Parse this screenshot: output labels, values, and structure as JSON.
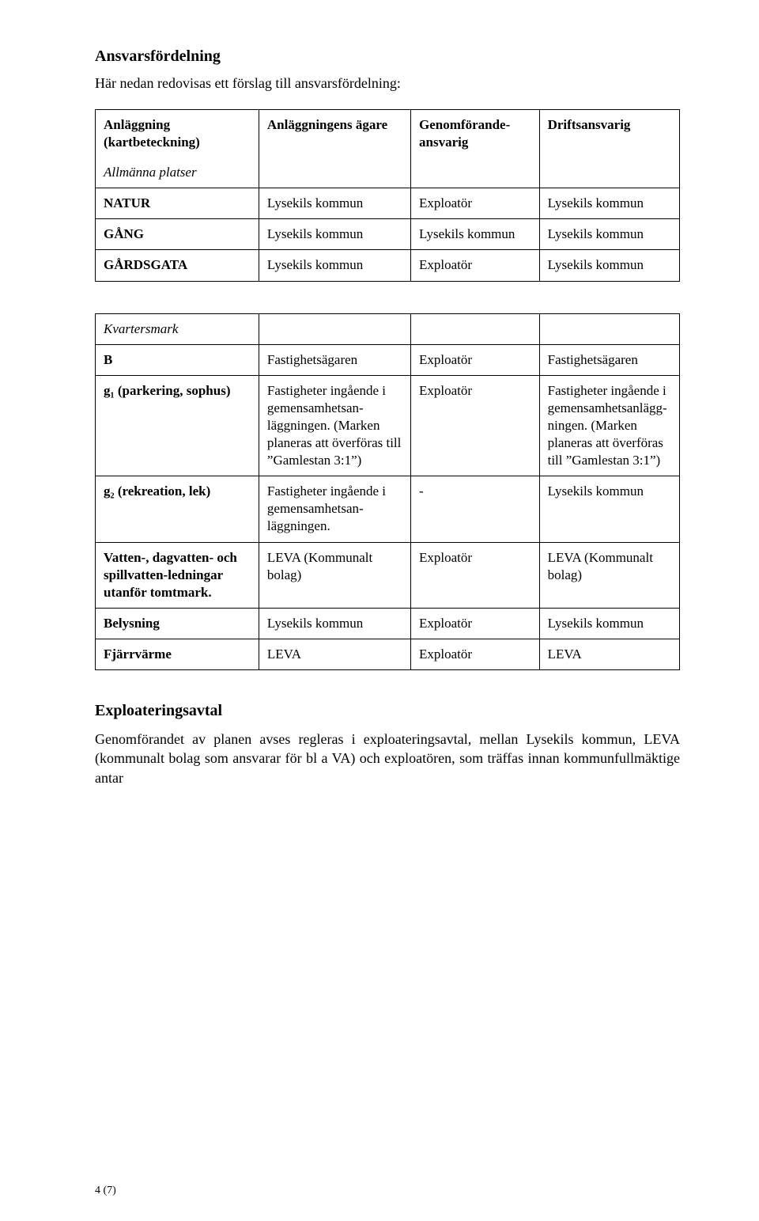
{
  "section1": {
    "heading": "Ansvarsfördelning",
    "intro": "Här nedan redovisas ett förslag till ansvarsfördelning:"
  },
  "table1": {
    "header": {
      "c1": "Anläggning (kartbeteckning)",
      "c2": "Anläggningens ägare",
      "c3": "Genomförande-ansvarig",
      "c4": "Driftsansvarig"
    },
    "sectionLabel": "Allmänna platser",
    "rows": [
      {
        "c1": "NATUR",
        "c2": "Lysekils kommun",
        "c3": "Exploatör",
        "c4": "Lysekils kommun"
      },
      {
        "c1": "GÅNG",
        "c2": "Lysekils kommun",
        "c3": "Lysekils kommun",
        "c4": "Lysekils kommun"
      },
      {
        "c1": "GÅRDSGATA",
        "c2": "Lysekils kommun",
        "c3": "Exploatör",
        "c4": "Lysekils kommun"
      }
    ]
  },
  "table2": {
    "sectionLabel": "Kvartersmark",
    "rows": [
      {
        "c1": "B",
        "c2": "Fastighetsägaren",
        "c3": "Exploatör",
        "c4": "Fastighetsägaren"
      },
      {
        "c1": "g₁ (parkering, sophus)",
        "c2": "Fastigheter ingående i gemensamhetsan-läggningen. (Marken planeras att överföras till ”Gamlestan 3:1”)",
        "c3": "Exploatör",
        "c4": "Fastigheter ingående i gemensamhetsanlägg-ningen. (Marken planeras att överföras till ”Gamlestan 3:1”)"
      },
      {
        "c1": "g₂ (rekreation, lek)",
        "c2": "Fastigheter ingående i gemensamhetsan-läggningen.",
        "c3": "-",
        "c4": "Lysekils kommun"
      },
      {
        "c1": "Vatten-, dagvatten- och spillvatten-ledningar utanför tomtmark.",
        "c2": "LEVA (Kommunalt bolag)",
        "c3": "Exploatör",
        "c4": "LEVA (Kommunalt bolag)"
      },
      {
        "c1": "Belysning",
        "c2": "Lysekils kommun",
        "c3": "Exploatör",
        "c4": "Lysekils kommun"
      },
      {
        "c1": "Fjärrvärme",
        "c2": "LEVA",
        "c3": "Exploatör",
        "c4": "LEVA"
      }
    ]
  },
  "section2": {
    "heading": "Exploateringsavtal",
    "body": "Genomförandet av planen avses regleras i exploateringsavtal, mellan Lysekils kommun, LEVA (kommunalt bolag som ansvarar för bl a VA) och exploatören, som träffas innan kommunfullmäktige antar"
  },
  "pageNumber": "4 (7)"
}
